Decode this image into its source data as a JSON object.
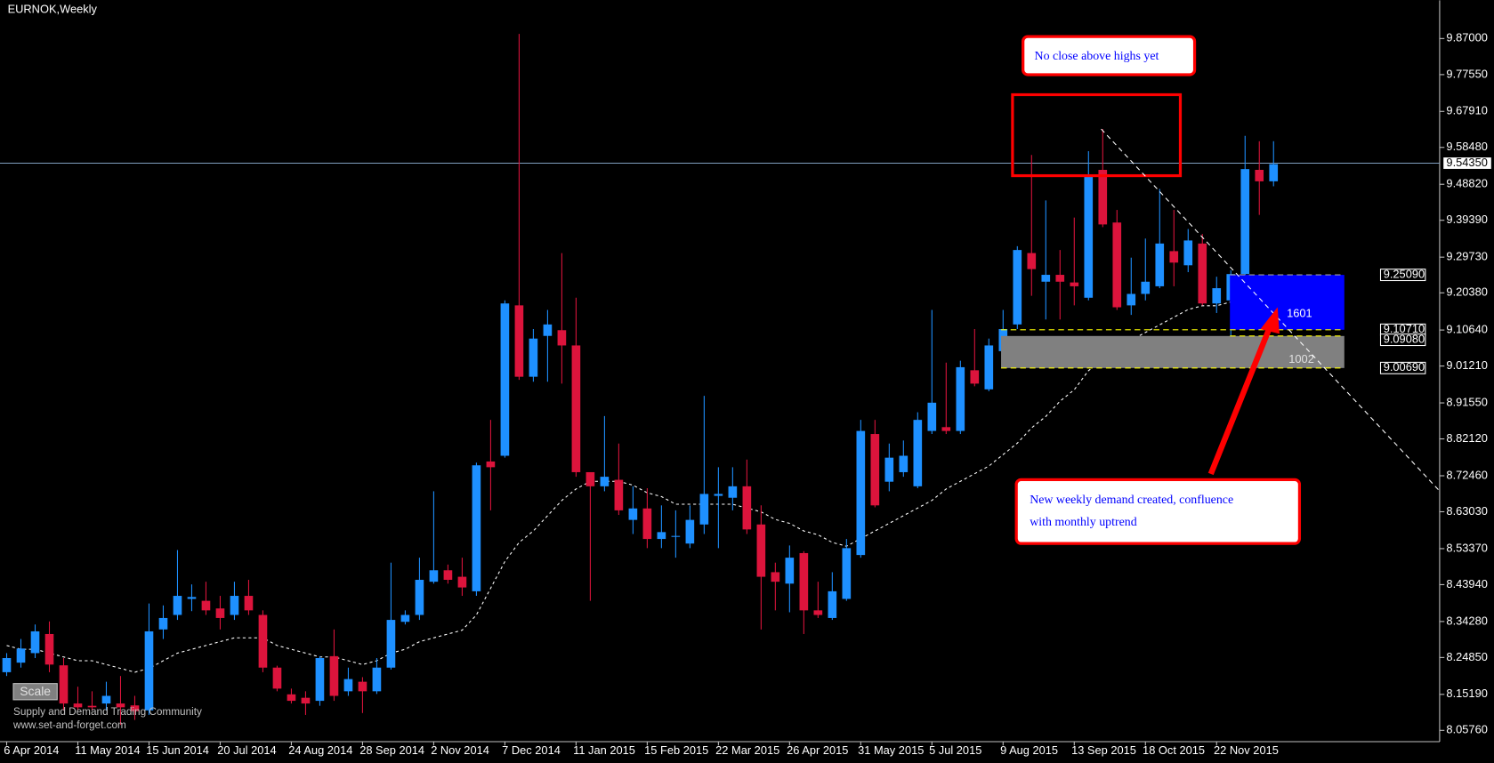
{
  "chart_data": {
    "type": "candlestick",
    "title": "EURNOK,Weekly",
    "categories": [
      "6 Apr 2014",
      null,
      null,
      null,
      null,
      "11 May 2014",
      null,
      null,
      null,
      null,
      "15 Jun 2014",
      null,
      null,
      null,
      null,
      "20 Jul 2014",
      null,
      null,
      null,
      null,
      "24 Aug 2014",
      null,
      null,
      null,
      null,
      "28 Sep 2014",
      null,
      null,
      null,
      null,
      "2 Nov 2014",
      null,
      null,
      null,
      null,
      "7 Dec 2014",
      null,
      null,
      null,
      null,
      "11 Jan 2015",
      null,
      null,
      null,
      null,
      "15 Feb 2015",
      null,
      null,
      null,
      null,
      "22 Mar 2015",
      null,
      null,
      null,
      null,
      "26 Apr 2015",
      null,
      null,
      null,
      null,
      "31 May 2015",
      null,
      null,
      null,
      null,
      "5 Jul 2015",
      null,
      null,
      null,
      null,
      "9 Aug 2015",
      null,
      null,
      null,
      null,
      "13 Sep 2015",
      null,
      null,
      null,
      null,
      "18 Oct 2015",
      null,
      null,
      null,
      null,
      "22 Nov 2015",
      null,
      null,
      null,
      null
    ],
    "open": [
      8.21,
      8.235,
      8.26,
      8.31,
      8.228,
      8.128,
      8.122,
      8.128,
      8.128,
      8.123,
      8.11,
      8.322,
      8.36,
      8.402,
      8.397,
      8.377,
      8.36,
      8.41,
      8.36,
      8.222,
      8.152,
      8.143,
      8.135,
      8.252,
      8.16,
      8.185,
      8.16,
      8.222,
      8.342,
      8.36,
      8.447,
      8.477,
      8.46,
      8.422,
      8.762,
      8.777,
      9.171,
      8.984,
      9.091,
      9.106,
      9.066,
      8.734,
      8.697,
      8.714,
      8.609,
      8.639,
      8.559,
      8.565,
      8.547,
      8.597,
      8.672,
      8.667,
      8.697,
      8.597,
      8.472,
      8.442,
      8.522,
      8.372,
      8.352,
      8.402,
      8.517,
      8.834,
      8.709,
      8.734,
      8.697,
      8.842,
      8.852,
      8.842,
      9.001,
      8.951,
      9.051,
      9.121,
      9.308,
      9.233,
      9.251,
      9.231,
      9.191,
      9.526,
      9.388,
      9.171,
      9.201,
      9.221,
      9.313,
      9.276,
      9.333,
      9.176,
      9.184,
      9.253,
      9.526,
      9.496
    ],
    "high": [
      8.26,
      8.297,
      8.335,
      8.343,
      8.247,
      8.172,
      8.16,
      8.185,
      8.2,
      8.148,
      8.39,
      8.385,
      8.53,
      8.44,
      8.447,
      8.41,
      8.447,
      8.452,
      8.372,
      8.227,
      8.167,
      8.16,
      8.252,
      8.322,
      8.222,
      8.197,
      8.247,
      8.497,
      8.372,
      8.51,
      8.684,
      8.492,
      8.51,
      8.759,
      8.871,
      9.184,
      9.882,
      9.109,
      9.159,
      9.308,
      9.191,
      8.734,
      8.881,
      8.809,
      8.697,
      8.692,
      8.647,
      8.634,
      8.647,
      8.934,
      8.747,
      8.747,
      8.767,
      8.647,
      8.497,
      8.542,
      8.527,
      8.447,
      8.472,
      8.559,
      8.871,
      8.871,
      8.809,
      8.817,
      8.891,
      9.159,
      9.021,
      9.026,
      9.109,
      9.084,
      9.159,
      9.326,
      9.565,
      9.446,
      9.316,
      9.401,
      9.575,
      9.633,
      9.421,
      9.296,
      9.346,
      9.476,
      9.421,
      9.371,
      9.358,
      9.246,
      9.263,
      9.615,
      9.601,
      9.601
    ],
    "low": [
      8.2,
      8.222,
      8.247,
      8.21,
      8.11,
      8.11,
      8.11,
      8.11,
      8.072,
      8.085,
      8.098,
      8.297,
      8.347,
      8.37,
      8.36,
      8.322,
      8.347,
      8.36,
      8.21,
      8.16,
      8.128,
      8.098,
      8.122,
      8.135,
      8.148,
      8.103,
      8.153,
      8.217,
      8.335,
      8.347,
      8.442,
      8.442,
      8.41,
      8.41,
      8.634,
      8.772,
      8.976,
      8.971,
      8.971,
      8.966,
      8.722,
      8.397,
      8.684,
      8.622,
      8.572,
      8.535,
      8.535,
      8.51,
      8.535,
      8.572,
      8.535,
      8.634,
      8.572,
      8.322,
      8.372,
      8.367,
      8.31,
      8.352,
      8.347,
      8.397,
      8.51,
      8.642,
      8.684,
      8.722,
      8.692,
      8.834,
      8.834,
      8.834,
      8.959,
      8.946,
      9.009,
      9.109,
      9.196,
      9.134,
      9.134,
      9.171,
      9.184,
      9.376,
      9.159,
      9.146,
      9.184,
      9.216,
      9.221,
      9.258,
      9.171,
      9.151,
      9.091,
      9.246,
      9.408,
      9.483
    ],
    "close": [
      8.247,
      8.272,
      8.317,
      8.23,
      8.128,
      8.118,
      8.118,
      8.148,
      8.118,
      8.108,
      8.317,
      8.352,
      8.41,
      8.407,
      8.372,
      8.352,
      8.41,
      8.372,
      8.222,
      8.167,
      8.135,
      8.128,
      8.247,
      8.148,
      8.192,
      8.16,
      8.222,
      8.347,
      8.36,
      8.452,
      8.477,
      8.452,
      8.432,
      8.752,
      8.747,
      9.176,
      8.984,
      9.084,
      9.121,
      9.066,
      8.734,
      8.697,
      8.722,
      8.634,
      8.639,
      8.559,
      8.577,
      8.567,
      8.609,
      8.677,
      8.677,
      8.697,
      8.584,
      8.46,
      8.447,
      8.51,
      8.372,
      8.36,
      8.422,
      8.535,
      8.842,
      8.647,
      8.772,
      8.777,
      8.871,
      8.916,
      8.842,
      9.009,
      8.966,
      9.066,
      9.109,
      9.316,
      9.266,
      9.251,
      9.233,
      9.221,
      9.508,
      9.383,
      9.166,
      9.201,
      9.233,
      9.333,
      9.283,
      9.341,
      9.176,
      9.216,
      9.253,
      9.528,
      9.496,
      9.541
    ],
    "ma": [
      8.28,
      8.27,
      8.27,
      8.26,
      8.25,
      8.24,
      8.24,
      8.23,
      8.22,
      8.21,
      8.22,
      8.24,
      8.26,
      8.27,
      8.28,
      8.29,
      8.3,
      8.3,
      8.3,
      8.28,
      8.27,
      8.26,
      8.25,
      8.25,
      8.24,
      8.23,
      8.24,
      8.26,
      8.27,
      8.29,
      8.3,
      8.31,
      8.32,
      8.36,
      8.43,
      8.5,
      8.55,
      8.58,
      8.62,
      8.66,
      8.69,
      8.71,
      8.71,
      8.71,
      8.7,
      8.68,
      8.67,
      8.65,
      8.65,
      8.65,
      8.65,
      8.65,
      8.64,
      8.63,
      8.61,
      8.6,
      8.58,
      8.57,
      8.55,
      8.54,
      8.56,
      8.58,
      8.6,
      8.62,
      8.64,
      8.66,
      8.69,
      8.71,
      8.73,
      8.75,
      8.78,
      8.81,
      8.85,
      8.88,
      8.92,
      8.95,
      9.0,
      9.03,
      9.06,
      9.08,
      9.1,
      9.12,
      9.14,
      9.16,
      9.17,
      9.17,
      9.18,
      9.19,
      9.21,
      9.23
    ],
    "up_color": "#1e90ff",
    "down_color": "#dc143c",
    "ma_color": "#ffffff",
    "ylim": [
      8.028,
      9.97
    ],
    "yticks": [
      {
        "value": 9.87,
        "label": "9.87000"
      },
      {
        "value": 9.7755,
        "label": "9.77550"
      },
      {
        "value": 9.6791,
        "label": "9.67910"
      },
      {
        "value": 9.5848,
        "label": "9.58480"
      },
      {
        "value": 9.4882,
        "label": "9.48820"
      },
      {
        "value": 9.3939,
        "label": "9.39390"
      },
      {
        "value": 9.2973,
        "label": "9.29730"
      },
      {
        "value": 9.2038,
        "label": "9.20380"
      },
      {
        "value": 9.1064,
        "label": "9.10640"
      },
      {
        "value": 9.0121,
        "label": "9.01210"
      },
      {
        "value": 8.9155,
        "label": "8.91550"
      },
      {
        "value": 8.8212,
        "label": "8.82120"
      },
      {
        "value": 8.7246,
        "label": "8.72460"
      },
      {
        "value": 8.6303,
        "label": "8.63030"
      },
      {
        "value": 8.5337,
        "label": "8.53370"
      },
      {
        "value": 8.4394,
        "label": "8.43940"
      },
      {
        "value": 8.3428,
        "label": "8.34280"
      },
      {
        "value": 8.2485,
        "label": "8.24850"
      },
      {
        "value": 8.1519,
        "label": "8.15190"
      },
      {
        "value": 8.0576,
        "label": "8.05760"
      }
    ],
    "last_price": {
      "value": 9.5435,
      "label": "9.54350"
    },
    "levels": [
      {
        "value": 9.2509,
        "label": "9.25090"
      },
      {
        "value": 9.1071,
        "label": "9.10710"
      },
      {
        "value": 9.0908,
        "label": "9.09080"
      },
      {
        "value": 9.0069,
        "label": "9.00690"
      }
    ],
    "zones": [
      {
        "name": "1601",
        "color": "#0000ff",
        "range": [
          9.1071,
          9.2509
        ]
      },
      {
        "name": "1002",
        "color": "#808080",
        "range": [
          9.0069,
          9.0908
        ]
      }
    ],
    "annotations": [
      [
        "No close above highs yet"
      ],
      [
        "New weekly demand created, confluence",
        "with monthly uptrend"
      ]
    ],
    "button": "Scale",
    "watermark": [
      "Supply and Demand Trading Community",
      "www.set-and-forget.com"
    ]
  }
}
